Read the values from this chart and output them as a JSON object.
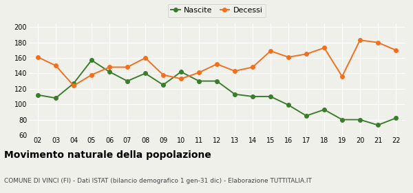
{
  "years": [
    "02",
    "03",
    "04",
    "05",
    "06",
    "07",
    "08",
    "09",
    "10",
    "11",
    "12",
    "13",
    "14",
    "15",
    "16",
    "17",
    "18",
    "19",
    "20",
    "21",
    "22"
  ],
  "nascite": [
    112,
    108,
    127,
    157,
    142,
    130,
    140,
    125,
    142,
    130,
    130,
    113,
    110,
    110,
    99,
    85,
    93,
    80,
    80,
    73,
    82
  ],
  "decessi": [
    161,
    150,
    124,
    138,
    148,
    148,
    160,
    138,
    133,
    141,
    152,
    143,
    148,
    169,
    161,
    165,
    173,
    136,
    183,
    180,
    170
  ],
  "nascite_color": "#3a7d2c",
  "decessi_color": "#f07020",
  "background_color": "#f0f0eb",
  "grid_color": "#ffffff",
  "ylim": [
    60,
    205
  ],
  "yticks": [
    60,
    80,
    100,
    120,
    140,
    160,
    180,
    200
  ],
  "title": "Movimento naturale della popolazione",
  "subtitle": "COMUNE DI VINCI (FI) - Dati ISTAT (bilancio demografico 1 gen-31 dic) - Elaborazione TUTTITALIA.IT",
  "legend_nascite": "Nascite",
  "legend_decessi": "Decessi",
  "title_fontsize": 10,
  "subtitle_fontsize": 6.5,
  "marker_size": 4,
  "linewidth": 1.4
}
